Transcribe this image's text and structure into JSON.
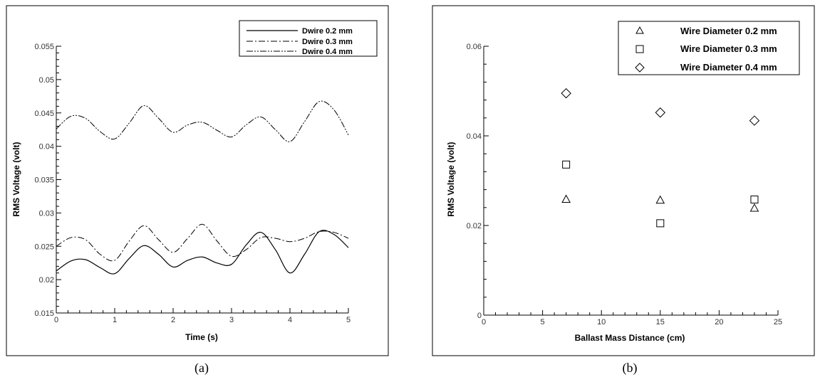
{
  "chart_data": [
    {
      "type": "line",
      "xlabel": "Time (s)",
      "ylabel": "RMS Voltage (volt)",
      "xlim": [
        0,
        5
      ],
      "ylim": [
        0.015,
        0.055
      ],
      "xticks": [
        "0",
        "1",
        "2",
        "3",
        "4",
        "5"
      ],
      "yticks": [
        "0.015",
        "0.02",
        "0.025",
        "0.03",
        "0.035",
        "0.04",
        "0.045",
        "0.05",
        "0.055"
      ],
      "legend_position": "top-right",
      "grid": false,
      "caption": "(a)",
      "series": [
        {
          "name": "Dwire 0.2 mm",
          "style": "solid",
          "x": [
            0,
            0.25,
            0.5,
            0.75,
            1,
            1.25,
            1.5,
            1.75,
            2,
            2.25,
            2.5,
            2.75,
            3,
            3.25,
            3.5,
            3.75,
            4,
            4.25,
            4.5,
            4.75,
            5
          ],
          "y": [
            0.0213,
            0.0228,
            0.023,
            0.0218,
            0.0209,
            0.0232,
            0.0251,
            0.0238,
            0.0219,
            0.0229,
            0.0234,
            0.0225,
            0.0223,
            0.0252,
            0.0271,
            0.0245,
            0.021,
            0.0238,
            0.0272,
            0.0268,
            0.0248
          ]
        },
        {
          "name": "Dwire 0.3 mm",
          "style": "dashdot",
          "x": [
            0,
            0.25,
            0.5,
            0.75,
            1,
            1.25,
            1.5,
            1.75,
            2,
            2.25,
            2.5,
            2.75,
            3,
            3.25,
            3.5,
            3.75,
            4,
            4.25,
            4.5,
            4.75,
            5
          ],
          "y": [
            0.025,
            0.0263,
            0.026,
            0.0238,
            0.0229,
            0.0258,
            0.0281,
            0.026,
            0.0241,
            0.0262,
            0.0283,
            0.0258,
            0.0235,
            0.0245,
            0.0263,
            0.0262,
            0.0257,
            0.0262,
            0.0272,
            0.0271,
            0.0262
          ]
        },
        {
          "name": "Dwire 0.4 mm",
          "style": "dashdotdot",
          "x": [
            0,
            0.25,
            0.5,
            0.75,
            1,
            1.25,
            1.5,
            1.75,
            2,
            2.25,
            2.5,
            2.75,
            3,
            3.25,
            3.5,
            3.75,
            4,
            4.25,
            4.5,
            4.75,
            5
          ],
          "y": [
            0.0426,
            0.0445,
            0.0442,
            0.0422,
            0.0411,
            0.0435,
            0.0461,
            0.0442,
            0.0421,
            0.0432,
            0.0436,
            0.0424,
            0.0414,
            0.0432,
            0.0444,
            0.0425,
            0.0407,
            0.0437,
            0.0467,
            0.0455,
            0.0417
          ]
        }
      ]
    },
    {
      "type": "scatter",
      "xlabel": "Ballast Mass Distance (cm)",
      "ylabel": "RMS Voltage (volt)",
      "xlim": [
        0,
        25
      ],
      "ylim": [
        0,
        0.06
      ],
      "xticks": [
        "0",
        "5",
        "10",
        "15",
        "20",
        "25"
      ],
      "yticks": [
        "0",
        "0.02",
        "0.04",
        "0.06"
      ],
      "legend_position": "top-right",
      "grid": false,
      "caption": "(b)",
      "series": [
        {
          "name": "Wire Diameter 0.2 mm",
          "marker": "triangle",
          "x": [
            7,
            15,
            23
          ],
          "y": [
            0.0258,
            0.0256,
            0.0238
          ]
        },
        {
          "name": "Wire Diameter 0.3 mm",
          "marker": "square",
          "x": [
            7,
            15,
            23
          ],
          "y": [
            0.0336,
            0.0205,
            0.0258
          ]
        },
        {
          "name": "Wire Diameter 0.4 mm",
          "marker": "diamond",
          "x": [
            7,
            15,
            23
          ],
          "y": [
            0.0495,
            0.0452,
            0.0434
          ]
        }
      ]
    }
  ]
}
